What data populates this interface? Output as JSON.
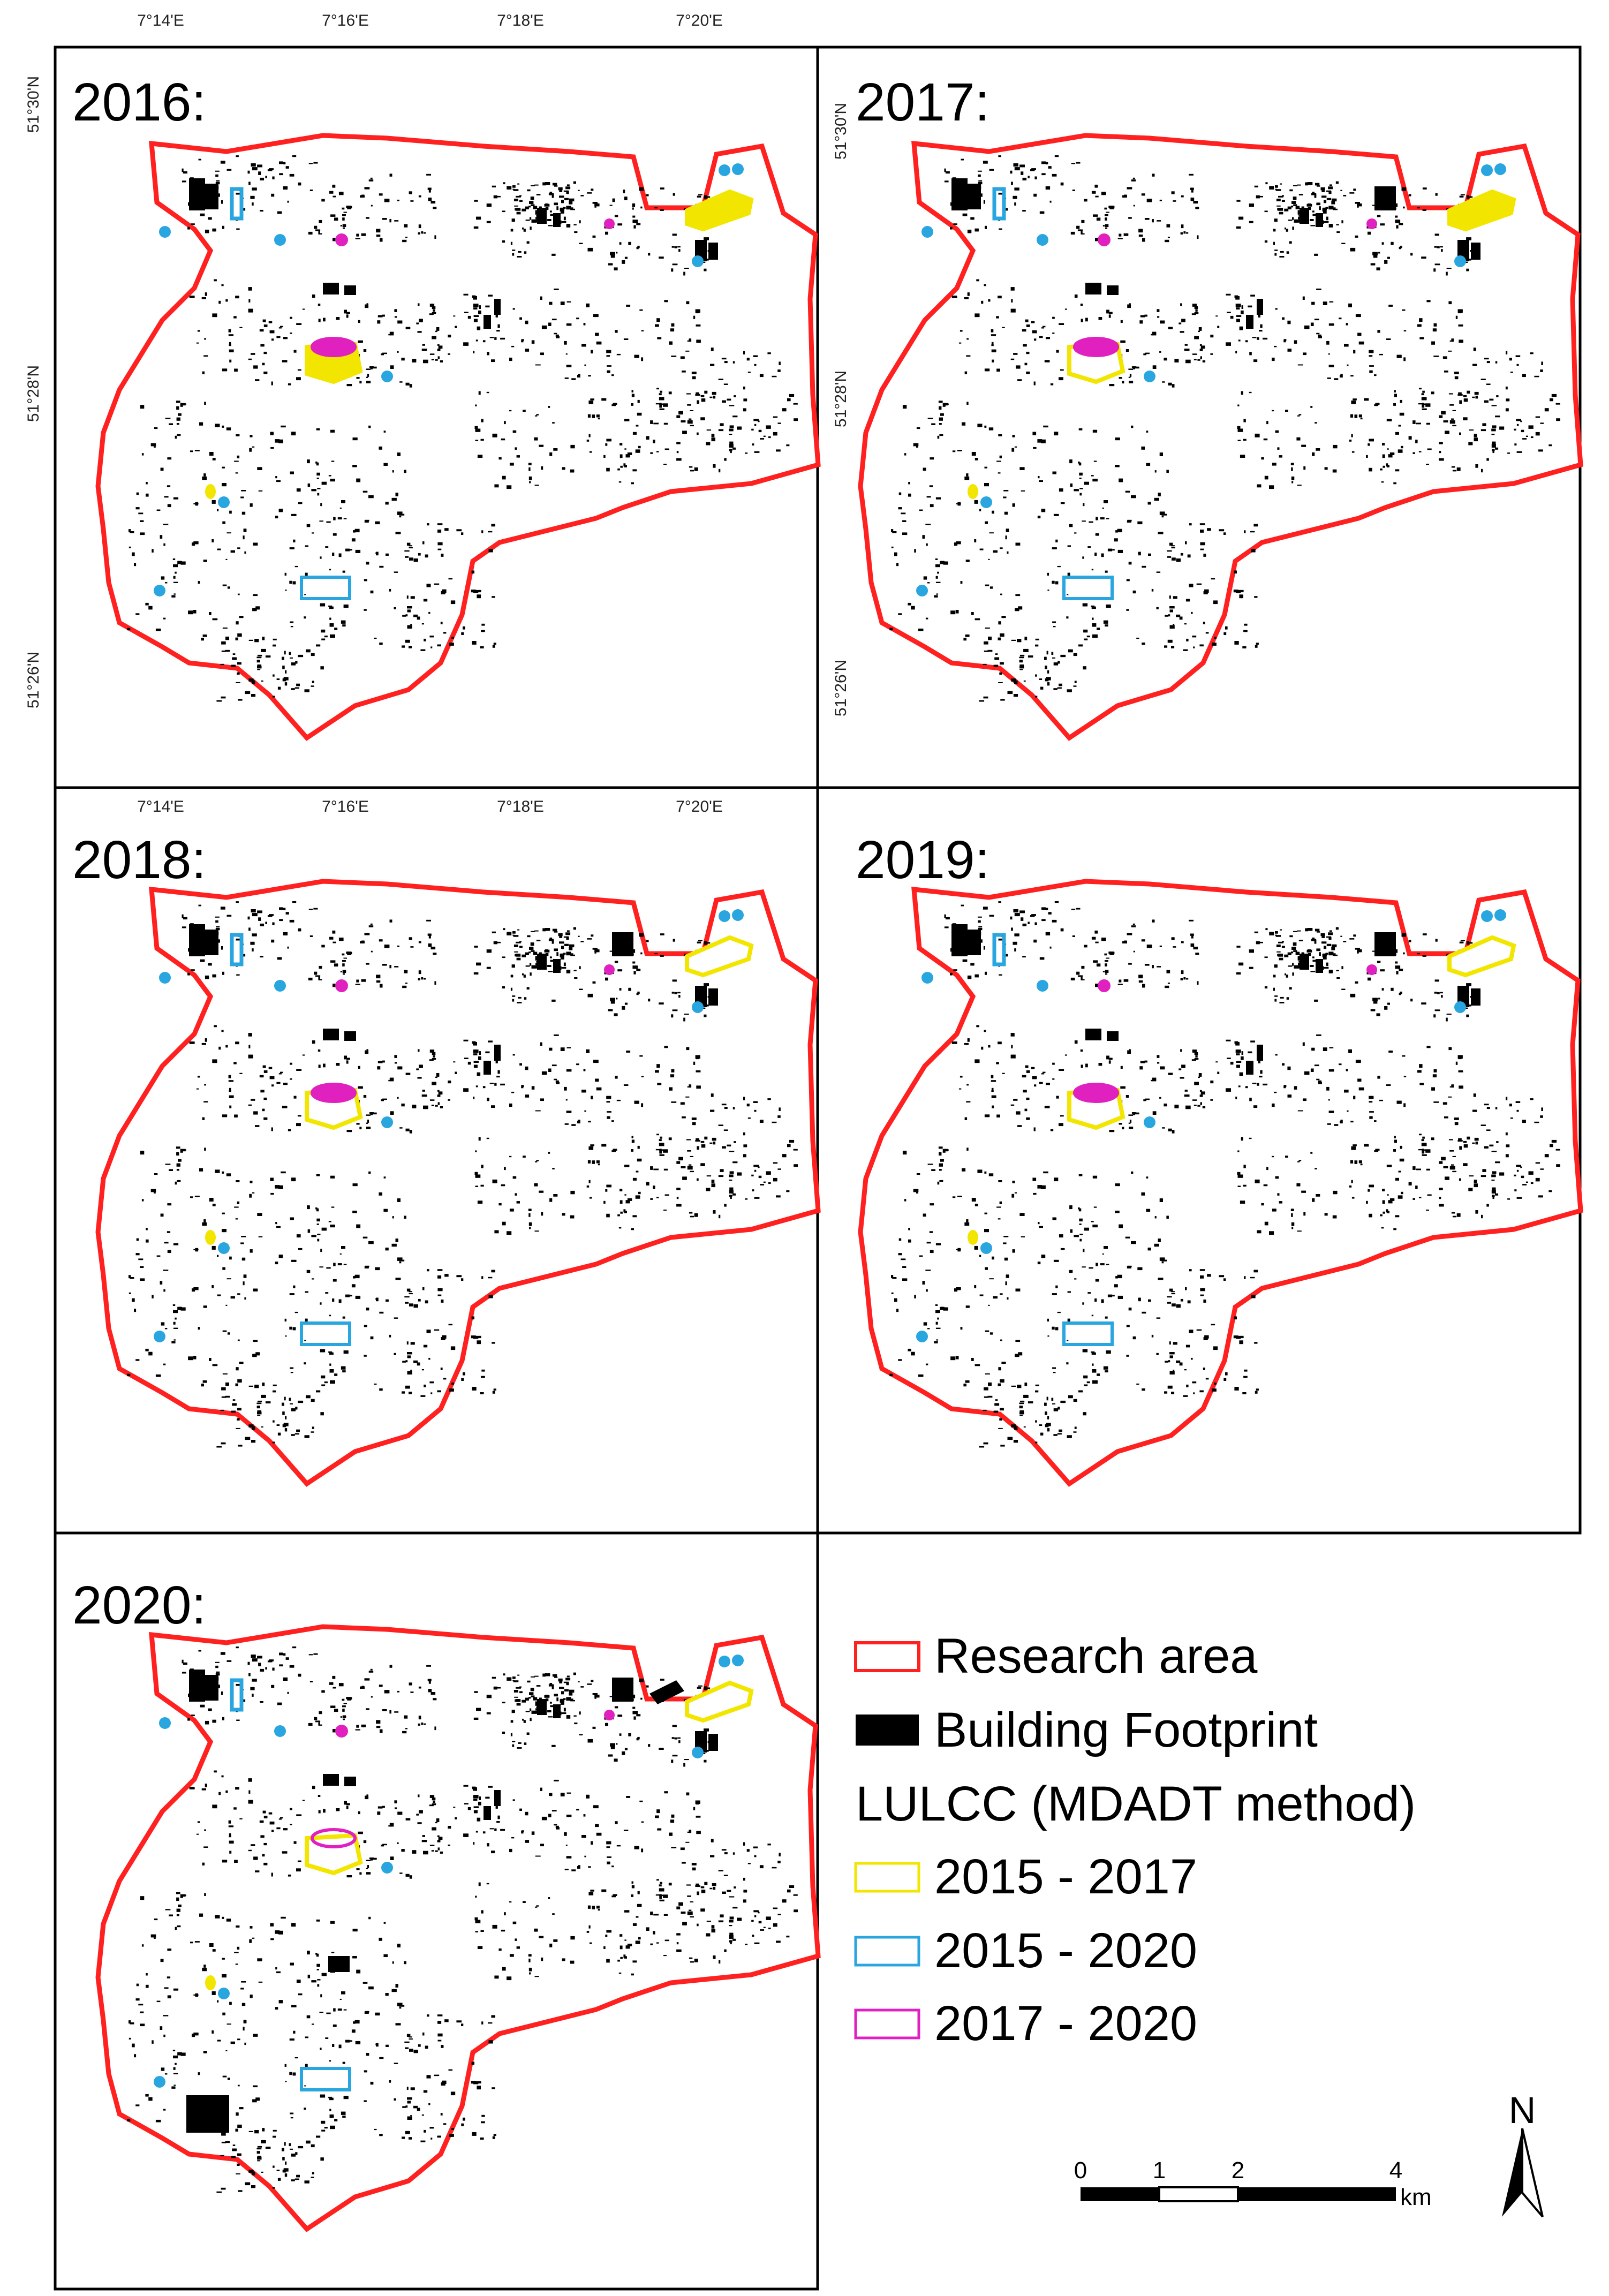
{
  "panels": [
    {
      "label": "2016:",
      "variant": 0
    },
    {
      "label": "2017:",
      "variant": 1
    },
    {
      "label": "2018:",
      "variant": 2
    },
    {
      "label": "2019:",
      "variant": 3
    },
    {
      "label": "2020:",
      "variant": 4
    }
  ],
  "coordinates": {
    "longitudes": [
      "7°14'E",
      "7°16'E",
      "7°18'E",
      "7°20'E"
    ],
    "latitudes": [
      "51°30'N",
      "51°28'N",
      "51°26'N"
    ]
  },
  "legend": {
    "items": [
      {
        "label": "Research area",
        "type": "outline",
        "color": "#ff2020"
      },
      {
        "label": "Building Footprint",
        "type": "fill",
        "color": "#000000"
      },
      {
        "label": "LULCC (MDADT method)",
        "type": "heading"
      },
      {
        "label": "2015 - 2017",
        "type": "outline",
        "color": "#f2e600"
      },
      {
        "label": "2015 - 2020",
        "type": "outline",
        "color": "#29a6df"
      },
      {
        "label": "2017 - 2020",
        "type": "outline",
        "color": "#e021c0"
      }
    ]
  },
  "scale_bar": {
    "ticks": [
      "0",
      "1",
      "2",
      "4"
    ],
    "unit": "km"
  },
  "north_arrow": {
    "label": "N"
  },
  "colors": {
    "boundary": "#ff2020",
    "building": "#000000",
    "change_2015_2017": "#f2e600",
    "change_2015_2020": "#29a6df",
    "change_2017_2020": "#e021c0"
  }
}
